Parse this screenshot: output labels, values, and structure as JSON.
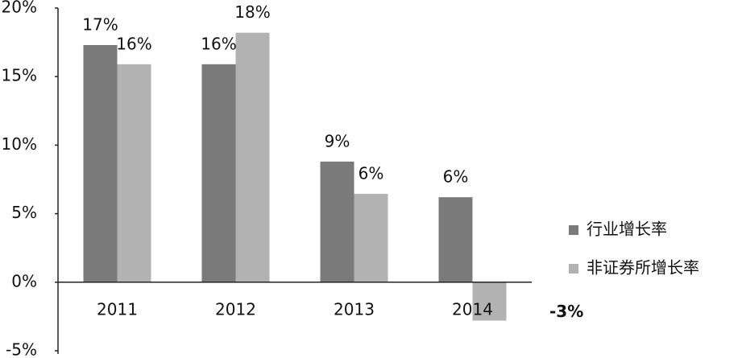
{
  "chart_data": {
    "type": "bar",
    "categories": [
      "2011",
      "2012",
      "2013",
      "2014"
    ],
    "series": [
      {
        "name": "行业增长率",
        "color": "#7a7a7a",
        "values": [
          17.3,
          15.9,
          8.8,
          6.2
        ],
        "value_labels": [
          "17%",
          "16%",
          "9%",
          "6%"
        ]
      },
      {
        "name": "非证券所增长率",
        "color": "#b2b2b2",
        "values": [
          15.9,
          18.2,
          6.45,
          -2.8
        ],
        "value_labels": [
          "16%",
          "18%",
          "6%",
          "-3%"
        ]
      }
    ],
    "ylim": [
      -5,
      20
    ],
    "yticks": [
      {
        "value": -5,
        "label": "-5%"
      },
      {
        "value": 0,
        "label": "0%"
      },
      {
        "value": 5,
        "label": "5%"
      },
      {
        "value": 10,
        "label": "10%"
      },
      {
        "value": 15,
        "label": "15%"
      },
      {
        "value": 20,
        "label": "20%"
      }
    ],
    "grid": false,
    "legend": "right"
  }
}
